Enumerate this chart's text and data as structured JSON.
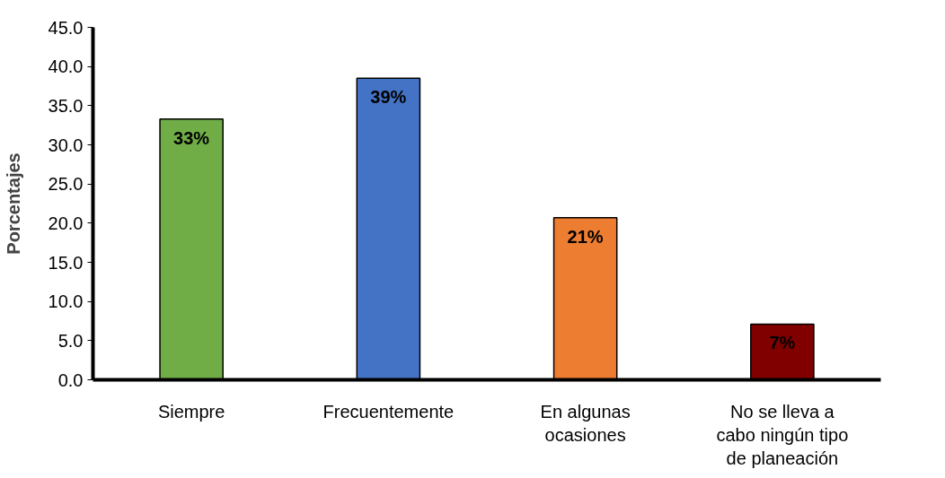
{
  "chart_data": {
    "type": "bar",
    "ylabel": "Porcentajes",
    "categories": [
      "Siempre",
      "Frecuentemente",
      "En algunas ocasiones",
      "No se lleva a cabo ningún tipo de planeación"
    ],
    "values": [
      33.3,
      38.5,
      20.7,
      7.1
    ],
    "colors": [
      "#70ad47",
      "#4472c4",
      "#ed7d31",
      "#800000"
    ],
    "value_labels": [
      "33%",
      "39%",
      "21%",
      "7%"
    ],
    "ylim": [
      0,
      45
    ],
    "yticks": [
      {
        "value": 0,
        "label": "0.0"
      },
      {
        "value": 5,
        "label": "5.0"
      },
      {
        "value": 10,
        "label": "10.0"
      },
      {
        "value": 15,
        "label": "15.0"
      },
      {
        "value": 20,
        "label": "20.0"
      },
      {
        "value": 25,
        "label": "25.0"
      },
      {
        "value": 30,
        "label": "30.0"
      },
      {
        "value": 35,
        "label": "35.0"
      },
      {
        "value": 40,
        "label": "40.0"
      },
      {
        "value": 45,
        "label": "45.0"
      }
    ],
    "grid": false
  }
}
